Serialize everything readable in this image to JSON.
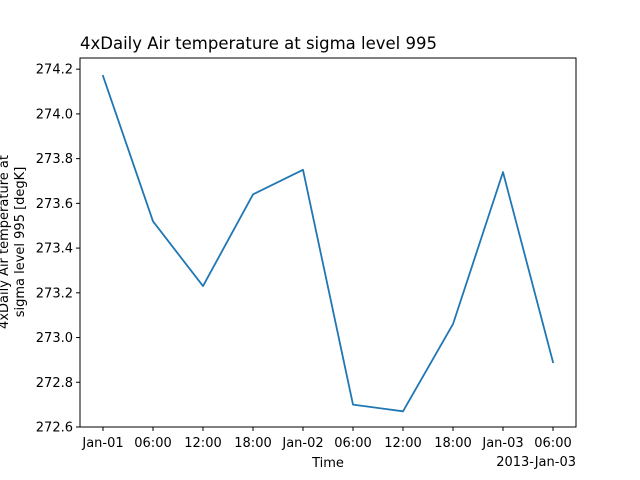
{
  "chart_data": {
    "type": "line",
    "title": "4xDaily Air temperature at sigma level 995",
    "xlabel": "Time",
    "ylabel_lines": [
      "4xDaily Air temperature at",
      "sigma level 995 [degK]"
    ],
    "x_offset_label": "2013-Jan-03",
    "x": [
      "2013-01-01 00:00",
      "2013-01-01 06:00",
      "2013-01-01 12:00",
      "2013-01-01 18:00",
      "2013-01-02 00:00",
      "2013-01-02 06:00",
      "2013-01-02 12:00",
      "2013-01-02 18:00",
      "2013-01-03 00:00",
      "2013-01-03 06:00"
    ],
    "x_tick_labels": [
      "Jan-01",
      "06:00",
      "12:00",
      "18:00",
      "Jan-02",
      "06:00",
      "12:00",
      "18:00",
      "Jan-03",
      "06:00"
    ],
    "series": [
      {
        "values": [
          274.17,
          273.52,
          273.23,
          273.64,
          273.75,
          272.7,
          272.67,
          273.06,
          273.74,
          272.89
        ],
        "color": "#1f77b4"
      }
    ],
    "ylim": [
      272.6,
      274.25
    ],
    "y_ticks": [
      272.6,
      272.8,
      273.0,
      273.2,
      273.4,
      273.6,
      273.8,
      274.0,
      274.2
    ],
    "y_tick_labels": [
      "272.6",
      "272.8",
      "273.0",
      "273.2",
      "273.4",
      "273.6",
      "273.8",
      "274.0",
      "274.2"
    ],
    "grid": false,
    "legend": "none"
  }
}
